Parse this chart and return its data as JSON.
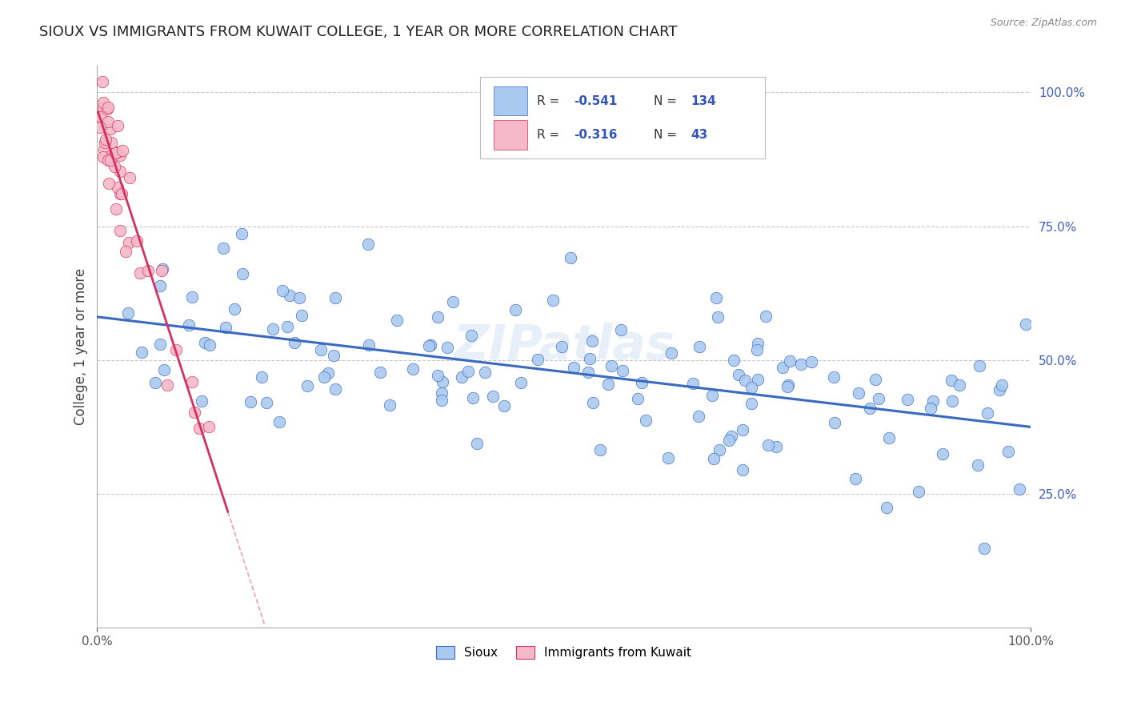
{
  "title": "SIOUX VS IMMIGRANTS FROM KUWAIT COLLEGE, 1 YEAR OR MORE CORRELATION CHART",
  "source_text": "Source: ZipAtlas.com",
  "ylabel": "College, 1 year or more",
  "legend_labels": [
    "Sioux",
    "Immigrants from Kuwait"
  ],
  "blue_r": "-0.541",
  "blue_n": "134",
  "pink_r": "-0.316",
  "pink_n": "43",
  "blue_color": "#aac9f0",
  "pink_color": "#f5b8c8",
  "blue_line_color": "#3a6abf",
  "pink_line_color": "#d43060",
  "watermark": "ZIPatlas",
  "background_color": "#ffffff",
  "grid_color": "#c8c8c8",
  "legend_text_color": "#3355bb",
  "legend_label_color": "#333333"
}
